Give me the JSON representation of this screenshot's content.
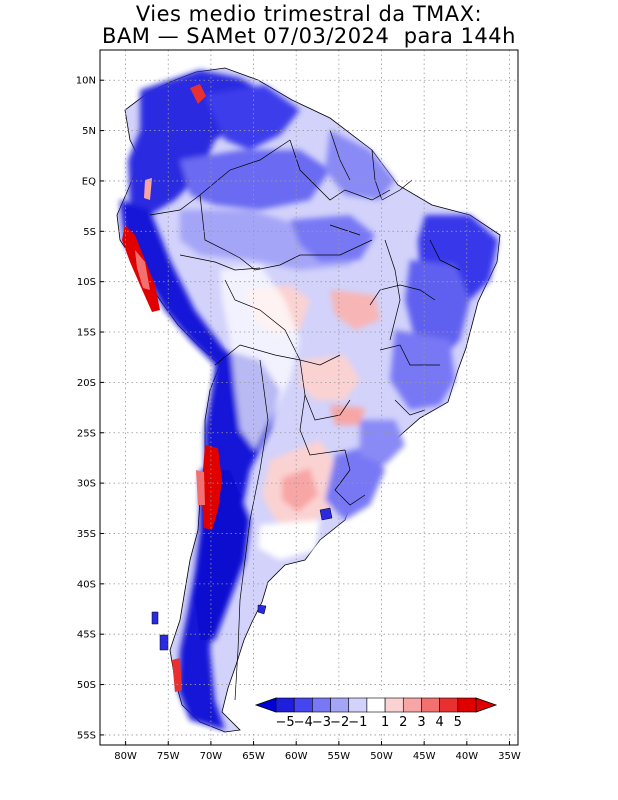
{
  "title": {
    "line1": "Vies medio trimestral da TMAX:",
    "line2": "BAM — SAMet 07/03/2024  para 144h"
  },
  "map": {
    "lon_range": [
      -83,
      -34
    ],
    "lat_range": [
      -56,
      13
    ],
    "grid": true,
    "lat_ticks": [
      "10N",
      "5N",
      "EQ",
      "5S",
      "10S",
      "15S",
      "20S",
      "25S",
      "30S",
      "35S",
      "40S",
      "45S",
      "50S",
      "55S"
    ],
    "lon_ticks": [
      "80W",
      "75W",
      "70W",
      "65W",
      "60W",
      "55W",
      "50W",
      "45W",
      "40W",
      "35W"
    ]
  },
  "colorbar": {
    "labels": [
      "−5",
      "−4",
      "−3",
      "−2",
      "−1",
      "1",
      "2",
      "3",
      "4",
      "5"
    ],
    "colors": [
      "#1e1edc",
      "#4646f0",
      "#7878f5",
      "#a5a5f8",
      "#d2d2fb",
      "#ffffff",
      "#fbd2d2",
      "#f8a5a5",
      "#f27070",
      "#e83030",
      "#e00000"
    ],
    "low_color": "#0000d8",
    "high_color": "#e00000"
  }
}
